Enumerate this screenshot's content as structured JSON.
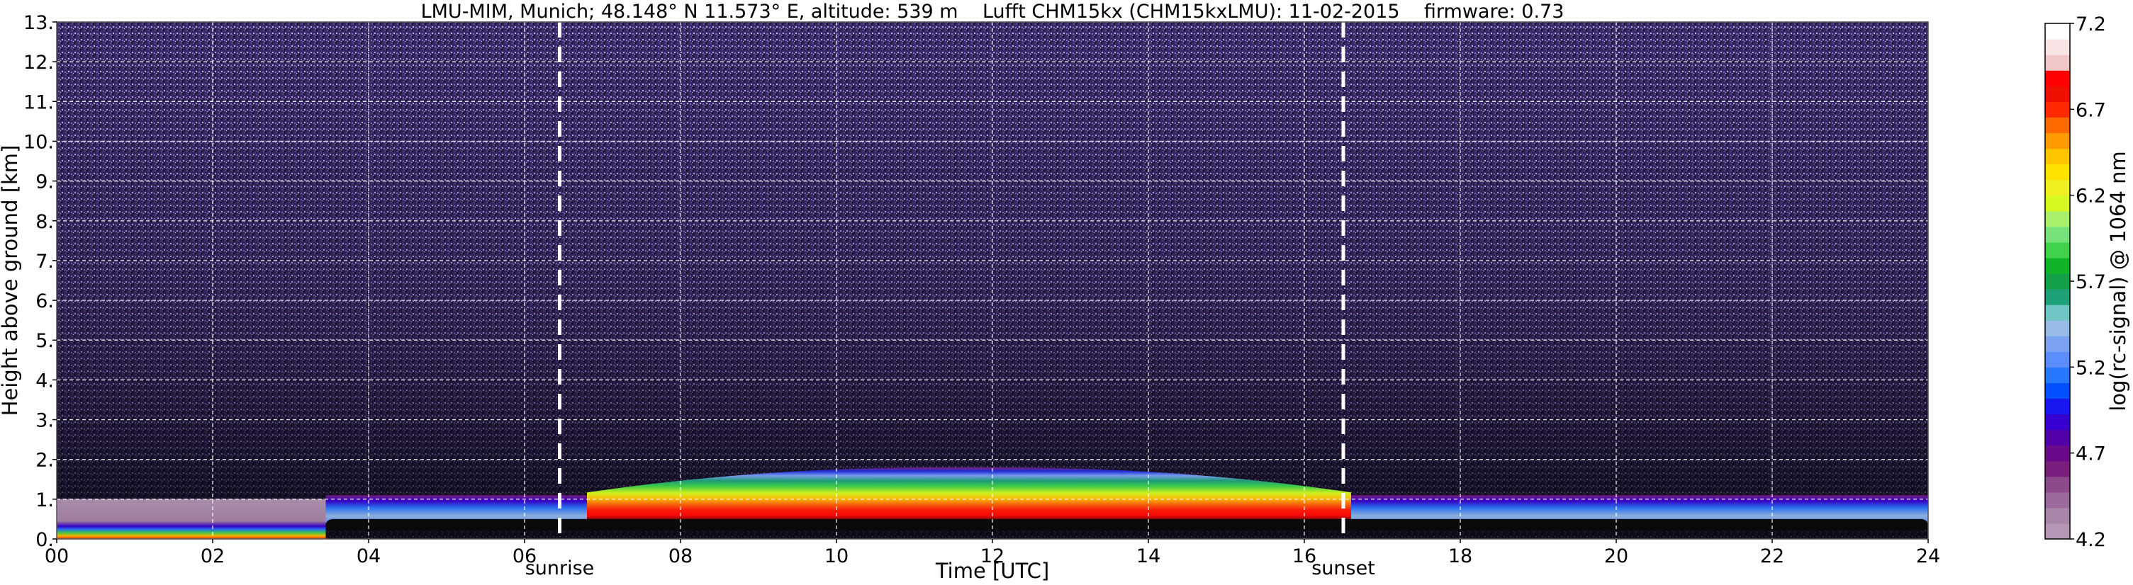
{
  "chart_data": {
    "type": "heatmap",
    "title": "LMU-MIM, Munich; 48.148° N 11.573° E, altitude: 539 m    Lufft CHM15kx (CHM15kxLMU): 11-02-2015    firmware: 0.73",
    "xlabel": "Time [UTC]",
    "ylabel": "Height above ground [km]",
    "xlim": [
      0,
      24
    ],
    "ylim": [
      0,
      13
    ],
    "x_ticks": [
      0,
      2,
      4,
      6,
      8,
      10,
      12,
      14,
      16,
      18,
      20,
      22,
      24
    ],
    "x_tick_labels": [
      "00",
      "02",
      "04",
      "06",
      "08",
      "10",
      "12",
      "14",
      "16",
      "18",
      "20",
      "22",
      "24"
    ],
    "y_ticks": [
      0,
      1,
      2,
      3,
      4,
      5,
      6,
      7,
      8,
      9,
      10,
      11,
      12,
      13
    ],
    "y_tick_labels": [
      "0.",
      "1.",
      "2.",
      "3.",
      "4.",
      "5.",
      "6.",
      "7.",
      "8.",
      "9.",
      "10.",
      "11.",
      "12.",
      "13."
    ],
    "grid": true,
    "vertical_markers": [
      {
        "label": "sunrise",
        "x": 6.45
      },
      {
        "label": "sunset",
        "x": 16.5
      }
    ],
    "colorbar": {
      "label": "log(rc-signal) @ 1064 nm",
      "range": [
        4.2,
        7.2
      ],
      "ticks": [
        4.2,
        4.7,
        5.2,
        5.7,
        6.2,
        6.7,
        7.2
      ],
      "tick_labels": [
        "4.2",
        "4.7",
        "5.2",
        "5.7",
        "6.2",
        "6.7",
        "7.2"
      ],
      "colors": [
        "#b497b4",
        "#a985a9",
        "#9c6a9c",
        "#8c4a8c",
        "#7a1e80",
        "#6a0a8a",
        "#5200a8",
        "#3800d0",
        "#1a18f0",
        "#0050ff",
        "#2878ff",
        "#5a8eff",
        "#7ca2f2",
        "#98bce8",
        "#6fc6c4",
        "#1ea078",
        "#14a048",
        "#10b428",
        "#40d24a",
        "#78e27a",
        "#a8f06a",
        "#d6fa20",
        "#f0f020",
        "#ffe200",
        "#ffc400",
        "#ff9a00",
        "#ff6a00",
        "#ff2a00",
        "#ee1000",
        "#ff0000",
        "#f0c8c8",
        "#f8e4e4",
        "#ffffff"
      ]
    },
    "layers": [
      {
        "name": "noise background",
        "x_range": [
          0,
          24
        ],
        "y_range": [
          0,
          13
        ]
      },
      {
        "name": "night boundary layer",
        "x_range": [
          0,
          3.45
        ],
        "y_range": [
          0,
          1.0
        ]
      },
      {
        "name": "residual layer",
        "x_range": [
          3.45,
          24
        ],
        "y_range": [
          0.4,
          1.1
        ]
      },
      {
        "name": "daytime boundary layer",
        "x_range": [
          6.8,
          16.6
        ],
        "y_range": [
          0.4,
          1.8
        ]
      },
      {
        "name": "near-ground dark band",
        "x_range": [
          3.45,
          24
        ],
        "y_range": [
          0.2,
          0.5
        ]
      }
    ]
  }
}
